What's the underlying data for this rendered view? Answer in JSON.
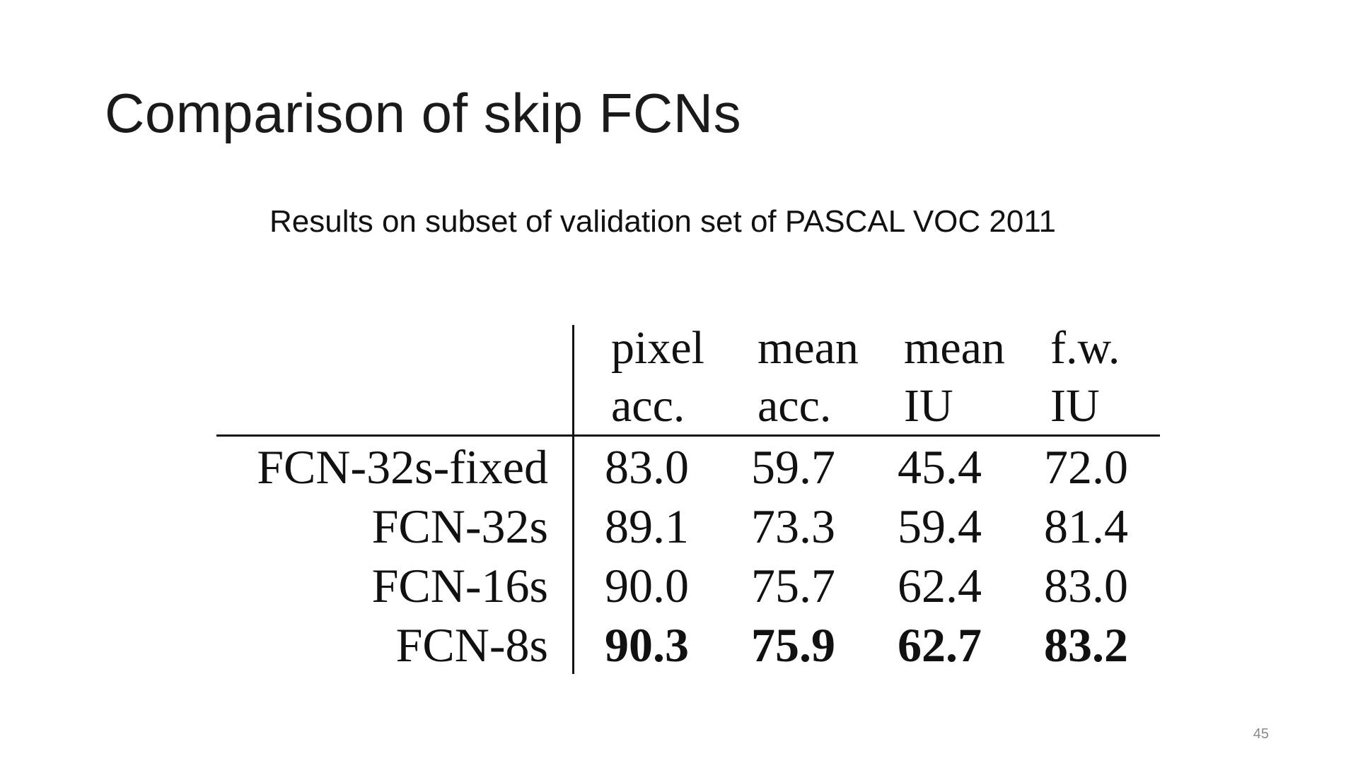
{
  "slide": {
    "title": "Comparison of skip FCNs",
    "subtitle": "Results on subset of validation set of PASCAL VOC 2011",
    "page_number": "45"
  },
  "table": {
    "columns": [
      {
        "line1": "pixel",
        "line2": "acc."
      },
      {
        "line1": "mean",
        "line2": "acc."
      },
      {
        "line1": "mean",
        "line2": "IU"
      },
      {
        "line1": "f.w.",
        "line2": "IU"
      }
    ],
    "rows": [
      {
        "label": "FCN-32s-fixed",
        "values": [
          "83.0",
          "59.7",
          "45.4",
          "72.0"
        ],
        "bold": false
      },
      {
        "label": "FCN-32s",
        "values": [
          "89.1",
          "73.3",
          "59.4",
          "81.4"
        ],
        "bold": false
      },
      {
        "label": "FCN-16s",
        "values": [
          "90.0",
          "75.7",
          "62.4",
          "83.0"
        ],
        "bold": false
      },
      {
        "label": "FCN-8s",
        "values": [
          "90.3",
          "75.9",
          "62.7",
          "83.2"
        ],
        "bold": true
      }
    ]
  }
}
